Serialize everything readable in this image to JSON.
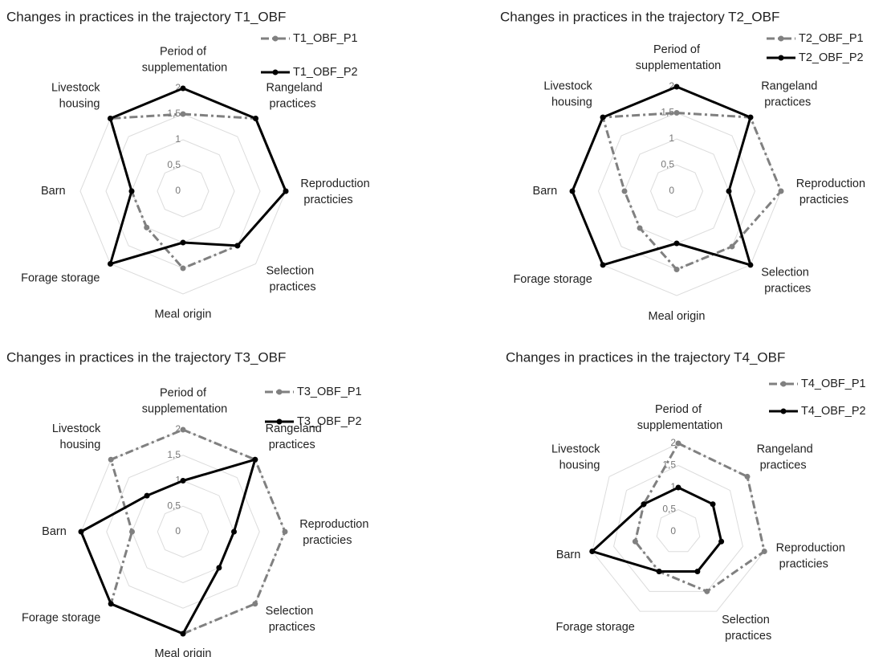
{
  "chart_data": [
    {
      "type": "radar",
      "title": "Changes in practices in the trajectory T1_OBF",
      "categories": [
        "Period of supplementation",
        "Rangeland practices",
        "Reproduction practicies",
        "Selection practices",
        "Meal origin",
        "Forage storage",
        "Barn",
        "Livestock housing"
      ],
      "ylim": [
        0,
        2
      ],
      "yticks": [
        0,
        {
          "value": 0.5,
          "label": "0,5"
        },
        1,
        {
          "value": 1.5,
          "label": "1,5"
        },
        2
      ],
      "series": [
        {
          "name": "T1_OBF_P1",
          "color": "#808080",
          "values": [
            1.5,
            2,
            2,
            1.5,
            1.5,
            1,
            1,
            2
          ]
        },
        {
          "name": "T1_OBF_P2",
          "color": "#000000",
          "values": [
            2,
            2,
            2,
            1.5,
            1,
            2,
            1,
            2
          ]
        }
      ]
    },
    {
      "type": "radar",
      "title": "Changes in practices in the trajectory T2_OBF",
      "categories": [
        "Period of supplementation",
        "Rangeland practices",
        "Reproduction practicies",
        "Selection practices",
        "Meal origin",
        "Forage storage",
        "Barn",
        "Livestock housing"
      ],
      "ylim": [
        0,
        2
      ],
      "yticks": [
        0,
        {
          "value": 0.5,
          "label": "0,5"
        },
        1,
        {
          "value": 1.5,
          "label": "1,5"
        },
        2
      ],
      "series": [
        {
          "name": "T2_OBF_P1",
          "color": "#808080",
          "values": [
            1.5,
            2,
            2,
            1.5,
            1.5,
            1,
            1,
            2
          ]
        },
        {
          "name": "T2_OBF_P2",
          "color": "#000000",
          "values": [
            2,
            2,
            1,
            2,
            1,
            2,
            2,
            2
          ]
        }
      ]
    },
    {
      "type": "radar",
      "title": "Changes in practices in the trajectory T3_OBF",
      "categories": [
        "Period of supplementation",
        "Rangeland practices",
        "Reproduction practicies",
        "Selection practices",
        "Meal origin",
        "Forage storage",
        "Barn",
        "Livestock housing"
      ],
      "ylim": [
        0,
        2
      ],
      "yticks": [
        0,
        {
          "value": 0.5,
          "label": "0,5"
        },
        1,
        {
          "value": 1.5,
          "label": "1,5"
        },
        2
      ],
      "series": [
        {
          "name": "T3_OBF_P1",
          "color": "#808080",
          "values": [
            2,
            2,
            2,
            2,
            2,
            2,
            1,
            2
          ]
        },
        {
          "name": "T3_OBF_P2",
          "color": "#000000",
          "values": [
            1,
            2,
            1,
            1,
            2,
            2,
            2,
            1
          ]
        }
      ]
    },
    {
      "type": "radar",
      "title": "Changes in practices in the trajectory T4_OBF",
      "categories": [
        "Period of supplementation",
        "Rangeland practices",
        "Reproduction practicies",
        "Selection practices",
        "Forage storage",
        "Barn",
        "Livestock housing"
      ],
      "ylim": [
        0,
        2
      ],
      "yticks": [
        0,
        {
          "value": 0.5,
          "label": "0,5"
        },
        1,
        {
          "value": 1.5,
          "label": "1,5"
        },
        2
      ],
      "series": [
        {
          "name": "T4_OBF_P1",
          "color": "#808080",
          "values": [
            2,
            2,
            2,
            1.5,
            1,
            1,
            1
          ]
        },
        {
          "name": "T4_OBF_P2",
          "color": "#000000",
          "values": [
            1,
            1,
            1,
            1,
            1,
            2,
            1
          ]
        }
      ]
    }
  ]
}
